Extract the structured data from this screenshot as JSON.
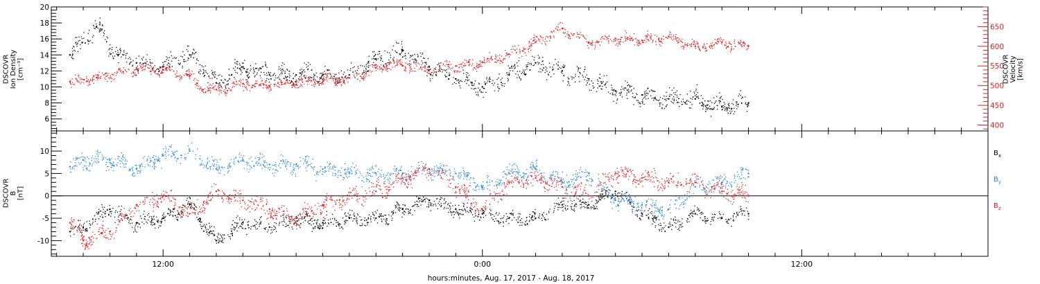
{
  "footer_label": "hours:minutes, Aug. 17, 2017 - Aug. 18, 2017",
  "colors": {
    "black": "#000000",
    "red": "#e8191b",
    "blue": "#1f86e0"
  },
  "chart_data": [
    {
      "type": "scatter",
      "panel": "top",
      "ylabel_left": [
        "DSCOVR",
        "Ion Density",
        "[cm⁻³]"
      ],
      "ylabel_right": [
        "DSCOVR",
        "Velocity",
        "[km/s]"
      ],
      "left_axis": {
        "ylim": [
          4.5,
          20.0
        ],
        "ticks": [
          6,
          8,
          10,
          12,
          14,
          16,
          18,
          20
        ]
      },
      "right_axis": {
        "ylim": [
          385,
          700
        ],
        "ticks": [
          400,
          450,
          500,
          550,
          600,
          650
        ]
      },
      "series": [
        {
          "color": "black",
          "axis": "left",
          "x": [
            8.5,
            9.5,
            10.3,
            11.0,
            12.0,
            13.0,
            14.0,
            15.0,
            16.0,
            17.0,
            18.0,
            19.0,
            20.0,
            21.0,
            22.0,
            23.0,
            24.0,
            25.0,
            26.0,
            27.0,
            28.0,
            29.0,
            30.0,
            31.0,
            32.0,
            33.0,
            34.0
          ],
          "y": [
            14.0,
            17.5,
            14.0,
            13.0,
            12.5,
            14.0,
            10.5,
            12.5,
            11.5,
            11.5,
            11.5,
            11.5,
            13.5,
            14.5,
            12.5,
            11.0,
            10.0,
            11.5,
            13.0,
            12.0,
            11.0,
            9.5,
            9.0,
            8.5,
            8.5,
            7.5,
            8.0
          ]
        },
        {
          "color": "red",
          "axis": "right",
          "x": [
            8.5,
            9.5,
            10.5,
            11.0,
            12.0,
            13.0,
            13.5,
            14.0,
            15.0,
            16.0,
            17.0,
            18.0,
            19.0,
            20.0,
            20.5,
            21.0,
            22.0,
            23.0,
            24.0,
            25.0,
            26.0,
            27.0,
            28.0,
            29.0,
            30.0,
            31.0,
            32.0,
            33.0,
            34.0
          ],
          "y": [
            510,
            520,
            535,
            545,
            540,
            525,
            490,
            490,
            505,
            500,
            510,
            515,
            520,
            545,
            555,
            550,
            540,
            550,
            560,
            580,
            610,
            645,
            610,
            620,
            615,
            625,
            600,
            610,
            600
          ]
        }
      ]
    },
    {
      "type": "scatter",
      "panel": "bottom",
      "ylabel_left": [
        "DSCOVR",
        "B",
        "[nT]"
      ],
      "ylim": [
        -13.5,
        14.5
      ],
      "ticks": [
        -10,
        -5,
        0,
        5,
        10
      ],
      "hline_at": 0,
      "legend": [
        "Bx",
        "By",
        "Bz"
      ],
      "series": [
        {
          "name": "Bx",
          "color": "black",
          "x": [
            8.5,
            9.0,
            10.0,
            11.0,
            12.0,
            13.0,
            14.0,
            15.0,
            16.0,
            17.0,
            18.0,
            19.0,
            20.0,
            21.0,
            22.0,
            23.0,
            24.0,
            25.0,
            26.0,
            27.0,
            28.0,
            29.0,
            30.0,
            31.0,
            32.0,
            33.0,
            34.0
          ],
          "y": [
            -8.0,
            -7.0,
            -3.0,
            -6.0,
            -5.0,
            -2.0,
            -10.0,
            -6.0,
            -7.0,
            -5.0,
            -6.0,
            -5.0,
            -5.0,
            -3.0,
            -1.0,
            -3.0,
            -4.0,
            -5.0,
            -5.0,
            -2.0,
            -2.0,
            1.0,
            -4.0,
            -7.0,
            -4.0,
            -5.0,
            -4.0
          ]
        },
        {
          "name": "By",
          "color": "blue",
          "x": [
            8.5,
            9.0,
            10.0,
            11.0,
            12.0,
            13.0,
            14.0,
            15.0,
            16.0,
            17.0,
            18.0,
            19.0,
            20.0,
            21.0,
            22.0,
            23.0,
            24.0,
            25.0,
            26.0,
            27.0,
            28.0,
            29.0,
            30.0,
            31.0,
            32.0,
            33.0,
            34.0
          ],
          "y": [
            6.5,
            8.0,
            8.0,
            6.0,
            9.0,
            10.0,
            6.0,
            8.0,
            7.0,
            7.0,
            6.0,
            5.0,
            5.0,
            5.0,
            6.0,
            5.0,
            2.0,
            5.0,
            6.0,
            3.0,
            5.0,
            -1.0,
            -2.0,
            -3.0,
            2.0,
            3.0,
            5.0
          ]
        },
        {
          "name": "Bz",
          "color": "red",
          "x": [
            8.5,
            9.0,
            10.0,
            11.0,
            12.0,
            13.0,
            14.0,
            15.0,
            16.0,
            17.0,
            18.0,
            19.0,
            20.0,
            21.0,
            22.0,
            23.0,
            24.0,
            25.0,
            26.0,
            27.0,
            28.0,
            29.0,
            30.0,
            31.0,
            32.0,
            33.0,
            34.0
          ],
          "y": [
            -6.0,
            -10.0,
            -8.0,
            -2.0,
            0.0,
            -4.0,
            1.0,
            -1.0,
            -3.0,
            -5.0,
            -2.0,
            0.0,
            1.0,
            4.0,
            6.0,
            2.0,
            -3.0,
            3.0,
            4.0,
            2.0,
            0.0,
            5.0,
            4.0,
            3.0,
            3.0,
            1.0,
            0.0
          ]
        }
      ]
    }
  ],
  "time_axis": {
    "xlim": [
      7.8,
      43.0
    ],
    "major_ticks": [
      12,
      24,
      36
    ],
    "major_labels": [
      "12:00",
      "0:00",
      "12:00"
    ]
  }
}
